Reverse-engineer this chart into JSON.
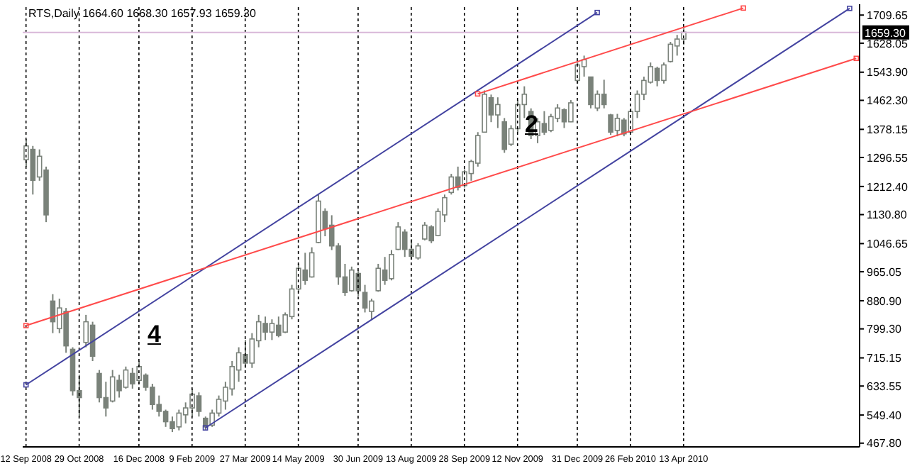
{
  "chart_data": {
    "type": "candlestick",
    "title": "RTS,Daily 1664.60 1668.30 1657.93 1659.30",
    "color": "#7a827a",
    "categories": [
      "12 Sep 2008",
      null,
      null,
      null,
      null,
      null,
      null,
      null,
      "29 Oct 2008",
      null,
      null,
      null,
      null,
      null,
      null,
      null,
      null,
      "16 Dec 2008",
      null,
      null,
      null,
      null,
      null,
      null,
      null,
      "9 Feb 2009",
      null,
      null,
      null,
      null,
      null,
      null,
      null,
      "27 Mar 2009",
      null,
      null,
      null,
      null,
      null,
      null,
      null,
      "14 May 2009",
      null,
      null,
      null,
      null,
      null,
      null,
      null,
      null,
      "30 Jun 2009",
      null,
      null,
      null,
      null,
      null,
      null,
      null,
      "13 Aug 2009",
      null,
      null,
      null,
      null,
      null,
      null,
      null,
      "28 Sep 2009",
      null,
      null,
      null,
      null,
      null,
      null,
      null,
      "12 Nov 2009",
      null,
      null,
      null,
      null,
      null,
      null,
      null,
      null,
      "31 Dec 2009",
      null,
      null,
      null,
      null,
      null,
      null,
      null,
      "26 Feb 2010",
      null,
      null,
      null,
      null,
      null,
      null,
      null,
      "13 Apr 2010",
      null,
      null,
      null,
      null,
      null,
      null,
      null,
      null,
      null,
      null,
      null,
      null,
      null,
      null,
      null,
      null,
      null,
      null,
      null,
      null,
      null,
      null,
      null,
      null,
      null,
      null
    ],
    "ohlc": [
      [
        1290,
        1350,
        1270,
        1330
      ],
      [
        1320,
        1330,
        1189,
        1230
      ],
      [
        1240,
        1320,
        1229,
        1300
      ],
      [
        1260,
        1270,
        1109,
        1130
      ],
      [
        880,
        900,
        787,
        820
      ],
      [
        800,
        887,
        787,
        860
      ],
      [
        850,
        860,
        730,
        750
      ],
      [
        740,
        746,
        606,
        620
      ],
      [
        620,
        666,
        545,
        600
      ],
      [
        760,
        840,
        746,
        820
      ],
      [
        810,
        820,
        706,
        720
      ],
      [
        670,
        680,
        586,
        600
      ],
      [
        600,
        646,
        545,
        570
      ],
      [
        590,
        680,
        586,
        660
      ],
      [
        650,
        666,
        600,
        620
      ],
      [
        630,
        690,
        626,
        680
      ],
      [
        670,
        686,
        626,
        640
      ],
      [
        650,
        706,
        640,
        690
      ],
      [
        665,
        670,
        620,
        630
      ],
      [
        630,
        640,
        565,
        580
      ],
      [
        580,
        606,
        545,
        560
      ],
      [
        560,
        565,
        515,
        530
      ],
      [
        530,
        545,
        500,
        510
      ],
      [
        515,
        565,
        505,
        555
      ],
      [
        550,
        586,
        525,
        570
      ],
      [
        570,
        626,
        545,
        610
      ],
      [
        605,
        615,
        545,
        560
      ],
      [
        540,
        545,
        505,
        515
      ],
      [
        520,
        565,
        515,
        555
      ],
      [
        555,
        606,
        545,
        595
      ],
      [
        590,
        646,
        565,
        630
      ],
      [
        625,
        706,
        606,
        690
      ],
      [
        680,
        746,
        646,
        730
      ],
      [
        725,
        767,
        686,
        700
      ],
      [
        700,
        787,
        686,
        770
      ],
      [
        765,
        840,
        746,
        820
      ],
      [
        815,
        835,
        767,
        790
      ],
      [
        790,
        827,
        767,
        815
      ],
      [
        810,
        835,
        775,
        780
      ],
      [
        790,
        847,
        787,
        840
      ],
      [
        835,
        927,
        827,
        915
      ],
      [
        915,
        988,
        907,
        975
      ],
      [
        970,
        1020,
        927,
        940
      ],
      [
        950,
        1036,
        948,
        1020
      ],
      [
        1050,
        1189,
        1048,
        1170
      ],
      [
        1140,
        1149,
        1068,
        1090
      ],
      [
        1100,
        1129,
        1028,
        1040
      ],
      [
        1040,
        1048,
        927,
        950
      ],
      [
        950,
        988,
        895,
        905
      ],
      [
        910,
        980,
        907,
        970
      ],
      [
        960,
        968,
        895,
        910
      ],
      [
        905,
        927,
        847,
        860
      ],
      [
        850,
        887,
        827,
        880
      ],
      [
        910,
        988,
        907,
        975
      ],
      [
        970,
        1008,
        927,
        940
      ],
      [
        945,
        1028,
        940,
        1015
      ],
      [
        1030,
        1109,
        1028,
        1095
      ],
      [
        1080,
        1088,
        1008,
        1030
      ],
      [
        1030,
        1060,
        1000,
        1010
      ],
      [
        1005,
        1048,
        1000,
        1040
      ],
      [
        1060,
        1109,
        1056,
        1100
      ],
      [
        1095,
        1100,
        1048,
        1055
      ],
      [
        1070,
        1149,
        1068,
        1140
      ],
      [
        1130,
        1189,
        1109,
        1180
      ],
      [
        1195,
        1249,
        1189,
        1240
      ],
      [
        1240,
        1270,
        1201,
        1210
      ],
      [
        1215,
        1262,
        1209,
        1255
      ],
      [
        1250,
        1290,
        1229,
        1285
      ],
      [
        1280,
        1370,
        1270,
        1360
      ],
      [
        1370,
        1491,
        1370,
        1480
      ],
      [
        1470,
        1479,
        1399,
        1420
      ],
      [
        1420,
        1471,
        1382,
        1450
      ],
      [
        1400,
        1411,
        1310,
        1320
      ],
      [
        1335,
        1390,
        1330,
        1380
      ],
      [
        1380,
        1463,
        1370,
        1450
      ],
      [
        1450,
        1503,
        1411,
        1480
      ],
      [
        1430,
        1439,
        1350,
        1360
      ],
      [
        1360,
        1411,
        1338,
        1400
      ],
      [
        1395,
        1431,
        1362,
        1370
      ],
      [
        1375,
        1423,
        1370,
        1415
      ],
      [
        1410,
        1451,
        1399,
        1440
      ],
      [
        1435,
        1439,
        1382,
        1400
      ],
      [
        1400,
        1463,
        1399,
        1455
      ],
      [
        1520,
        1572,
        1511,
        1565
      ],
      [
        1560,
        1592,
        1531,
        1580
      ],
      [
        1530,
        1531,
        1439,
        1450
      ],
      [
        1440,
        1491,
        1431,
        1480
      ],
      [
        1480,
        1522,
        1439,
        1450
      ],
      [
        1420,
        1423,
        1362,
        1370
      ],
      [
        1375,
        1423,
        1358,
        1410
      ],
      [
        1405,
        1411,
        1358,
        1365
      ],
      [
        1370,
        1439,
        1370,
        1430
      ],
      [
        1430,
        1491,
        1411,
        1480
      ],
      [
        1480,
        1531,
        1463,
        1520
      ],
      [
        1515,
        1572,
        1511,
        1560
      ],
      [
        1555,
        1560,
        1503,
        1520
      ],
      [
        1520,
        1572,
        1511,
        1565
      ],
      [
        1575,
        1632,
        1572,
        1625
      ],
      [
        1620,
        1652,
        1592,
        1640
      ],
      [
        1640,
        1672,
        1624,
        1660
      ],
      null,
      null,
      null,
      null,
      null,
      null,
      null,
      null,
      null,
      null,
      null,
      null,
      null,
      null,
      null,
      null,
      null,
      null,
      null,
      null,
      null,
      null,
      null,
      null,
      null,
      null
    ],
    "series": [
      {
        "type": "line",
        "color": "#4343a0",
        "values": [
          637,
          null,
          null,
          null,
          null,
          null,
          null,
          null,
          null,
          null,
          null,
          null,
          null,
          null,
          null,
          null,
          null,
          null,
          null,
          null,
          null,
          null,
          null,
          null,
          null,
          null,
          null,
          null,
          null,
          null,
          null,
          null,
          null,
          null,
          null,
          null,
          null,
          null,
          null,
          null,
          null,
          null,
          null,
          null,
          null,
          null,
          null,
          null,
          null,
          null,
          null,
          null,
          null,
          null,
          null,
          null,
          null,
          null,
          null,
          null,
          null,
          null,
          null,
          null,
          null,
          null,
          null,
          null,
          null,
          null,
          null,
          null,
          null,
          null,
          null,
          null,
          null,
          null,
          null,
          null,
          null,
          null,
          null,
          null,
          null,
          null,
          1717,
          null,
          null,
          null,
          null,
          null,
          null,
          null,
          null,
          null,
          null,
          null,
          null,
          null,
          null,
          null,
          null,
          null,
          null,
          null,
          null,
          null,
          null,
          null,
          null,
          null,
          null,
          null,
          null,
          null,
          null,
          null,
          null,
          null,
          null,
          null,
          null,
          null,
          null,
          null
        ]
      },
      {
        "type": "line",
        "color": "#4343a0",
        "values": [
          null,
          null,
          null,
          null,
          null,
          null,
          null,
          null,
          null,
          null,
          null,
          null,
          null,
          null,
          null,
          null,
          null,
          null,
          null,
          null,
          null,
          null,
          null,
          null,
          null,
          null,
          null,
          512,
          null,
          null,
          null,
          null,
          null,
          null,
          null,
          null,
          null,
          null,
          null,
          null,
          null,
          null,
          null,
          null,
          null,
          null,
          null,
          null,
          null,
          null,
          null,
          null,
          null,
          null,
          null,
          null,
          null,
          null,
          null,
          null,
          null,
          null,
          null,
          null,
          null,
          null,
          null,
          null,
          null,
          null,
          null,
          null,
          null,
          null,
          null,
          null,
          null,
          null,
          null,
          null,
          null,
          null,
          null,
          null,
          null,
          null,
          null,
          null,
          null,
          null,
          null,
          null,
          null,
          null,
          null,
          null,
          null,
          null,
          null,
          null,
          null,
          null,
          null,
          null,
          null,
          null,
          null,
          null,
          null,
          null,
          null,
          null,
          null,
          null,
          null,
          null,
          null,
          null,
          null,
          null,
          null,
          null,
          null,
          null,
          1729,
          null
        ]
      },
      {
        "type": "line",
        "color": "#ff4a4a",
        "values": [
          809,
          null,
          null,
          null,
          null,
          null,
          null,
          null,
          null,
          null,
          null,
          null,
          null,
          null,
          null,
          null,
          null,
          null,
          null,
          null,
          null,
          null,
          null,
          null,
          null,
          null,
          null,
          null,
          null,
          null,
          null,
          null,
          null,
          null,
          null,
          null,
          null,
          null,
          null,
          null,
          null,
          null,
          null,
          null,
          null,
          null,
          null,
          null,
          null,
          null,
          null,
          null,
          null,
          null,
          null,
          null,
          null,
          null,
          null,
          null,
          null,
          null,
          null,
          null,
          null,
          null,
          null,
          null,
          null,
          null,
          null,
          null,
          null,
          null,
          null,
          null,
          null,
          null,
          null,
          null,
          null,
          null,
          null,
          null,
          null,
          null,
          null,
          null,
          null,
          null,
          null,
          null,
          null,
          null,
          null,
          null,
          null,
          null,
          null,
          null,
          null,
          null,
          null,
          null,
          null,
          null,
          null,
          null,
          null,
          null,
          null,
          null,
          null,
          null,
          null,
          null,
          null,
          null,
          null,
          null,
          null,
          null,
          null,
          null,
          null,
          1584
        ]
      },
      {
        "type": "line",
        "color": "#ff4a4a",
        "values": [
          null,
          null,
          null,
          null,
          null,
          null,
          null,
          null,
          null,
          null,
          null,
          null,
          null,
          null,
          null,
          null,
          null,
          null,
          null,
          null,
          null,
          null,
          null,
          null,
          null,
          null,
          null,
          null,
          null,
          null,
          null,
          null,
          null,
          null,
          null,
          null,
          null,
          null,
          null,
          null,
          null,
          null,
          null,
          null,
          null,
          null,
          null,
          null,
          null,
          null,
          null,
          null,
          null,
          null,
          null,
          null,
          null,
          null,
          null,
          null,
          null,
          null,
          null,
          null,
          null,
          null,
          null,
          null,
          1481,
          null,
          null,
          null,
          null,
          null,
          null,
          null,
          null,
          null,
          null,
          null,
          null,
          null,
          null,
          null,
          null,
          null,
          null,
          null,
          null,
          null,
          null,
          null,
          null,
          null,
          null,
          null,
          null,
          null,
          null,
          null,
          null,
          null,
          null,
          null,
          null,
          null,
          null,
          null,
          1730,
          null,
          null,
          null,
          null,
          null,
          null,
          null,
          null,
          null,
          null,
          null,
          null,
          null,
          null,
          null,
          null,
          null
        ]
      }
    ],
    "ylim": [
      457,
      1741
    ],
    "yticks": [
      {
        "value": 1709.65,
        "label": "1709.65"
      },
      {
        "value": 1628.05,
        "label": "1628.05"
      },
      {
        "value": 1543.9,
        "label": "1543.90"
      },
      {
        "value": 1462.3,
        "label": "1462.30"
      },
      {
        "value": 1378.15,
        "label": "1378.15"
      },
      {
        "value": 1296.55,
        "label": "1296.55"
      },
      {
        "value": 1212.4,
        "label": "1212.40"
      },
      {
        "value": 1130.8,
        "label": "1130.80"
      },
      {
        "value": 1046.65,
        "label": "1046.65"
      },
      {
        "value": 965.05,
        "label": "965.05"
      },
      {
        "value": 880.9,
        "label": "880.90"
      },
      {
        "value": 799.3,
        "label": "799.30"
      },
      {
        "value": 715.15,
        "label": "715.15"
      },
      {
        "value": 633.55,
        "label": "633.55"
      },
      {
        "value": 549.4,
        "label": "549.40"
      },
      {
        "value": 467.8,
        "label": "467.80"
      }
    ],
    "grid": "x",
    "marker": "square",
    "ref_lines": [
      {
        "axis": "y",
        "value": 1659.3,
        "label": "1659.30",
        "color": "#d8b8d8"
      }
    ],
    "annotations": [
      "4",
      "2"
    ]
  }
}
